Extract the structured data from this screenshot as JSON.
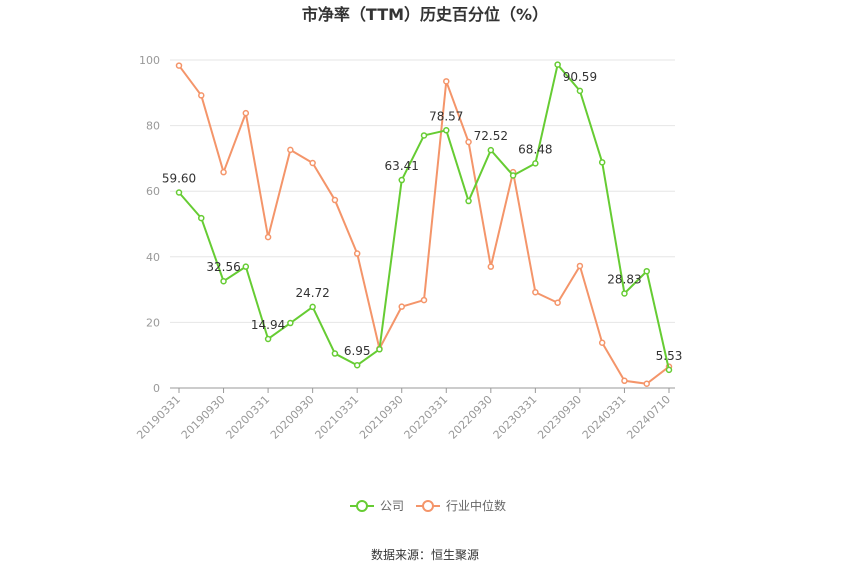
{
  "chart_data": {
    "type": "line",
    "title": "市净率（TTM）历史百分位（%）",
    "source": "数据来源：恒生聚源",
    "ylim": [
      0,
      100
    ],
    "y_ticks": [
      0,
      20,
      40,
      60,
      80,
      100
    ],
    "x": [
      "20190331",
      "20190630",
      "20190930",
      "20191231",
      "20200331",
      "20200630",
      "20200930",
      "20201231",
      "20210331",
      "20210630",
      "20210930",
      "20211231",
      "20220331",
      "20220630",
      "20220930",
      "20221231",
      "20230331",
      "20230630",
      "20230930",
      "20231231",
      "20240331",
      "20240630",
      "20240710"
    ],
    "x_tick_labels": [
      "20190331",
      "20190930",
      "20200331",
      "20200930",
      "20210331",
      "20210930",
      "20220331",
      "20220930",
      "20230331",
      "20230930",
      "20240331",
      "20240710"
    ],
    "grid": true,
    "legend_position": "bottom",
    "series": [
      {
        "name": "公司",
        "color": "#66cc33",
        "values": [
          59.6,
          51.8,
          32.56,
          37.0,
          14.94,
          19.8,
          24.72,
          10.5,
          6.95,
          11.8,
          63.41,
          77.0,
          78.57,
          57.0,
          72.52,
          64.8,
          68.48,
          98.6,
          90.59,
          68.8,
          28.83,
          35.6,
          5.53
        ],
        "labels": {
          "0": "59.60",
          "2": "32.56",
          "4": "14.94",
          "6": "24.72",
          "8": "6.95",
          "10": "63.41",
          "12": "78.57",
          "14": "72.52",
          "16": "68.48",
          "18": "90.59",
          "20": "28.83",
          "22": "5.53"
        }
      },
      {
        "name": "行业中位数",
        "color": "#f4956a",
        "values": [
          98.3,
          89.2,
          65.8,
          83.8,
          46.0,
          72.6,
          68.6,
          57.3,
          41.0,
          12.0,
          24.8,
          26.8,
          93.5,
          75.0,
          37.0,
          65.8,
          29.2,
          26.0,
          37.2,
          13.8,
          2.2,
          1.3,
          6.5
        ]
      }
    ]
  }
}
